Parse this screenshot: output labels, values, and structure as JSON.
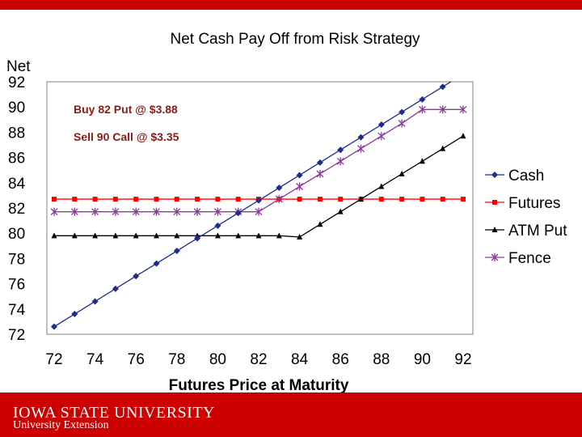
{
  "chart_data": {
    "type": "line",
    "title": "Net Cash Pay Off from Risk Strategy",
    "xlabel": "Futures Price at Maturity",
    "ylabel": "Net",
    "xlim": [
      72,
      92
    ],
    "ylim": [
      72,
      92
    ],
    "xticks": [
      72,
      74,
      76,
      78,
      80,
      82,
      84,
      86,
      88,
      90,
      92
    ],
    "yticks": [
      72,
      74,
      76,
      78,
      80,
      82,
      84,
      86,
      88,
      90,
      92
    ],
    "grid": false,
    "legend_position": "right",
    "annotations": [
      "Buy 82 Put @ $3.88",
      "Sell 90 Call @ $3.35"
    ],
    "x": [
      72,
      73,
      74,
      75,
      76,
      77,
      78,
      79,
      80,
      81,
      82,
      83,
      84,
      85,
      86,
      87,
      88,
      89,
      90,
      91,
      92
    ],
    "series": [
      {
        "name": "Cash",
        "color": "#1f2d8a",
        "marker": "diamond",
        "values": [
          72.6,
          73.6,
          74.6,
          75.6,
          76.6,
          77.6,
          78.6,
          79.6,
          80.6,
          81.6,
          82.6,
          83.6,
          84.6,
          85.6,
          86.6,
          87.6,
          88.6,
          89.6,
          90.6,
          91.6,
          92.6
        ]
      },
      {
        "name": "Futures",
        "color": "#ff0000",
        "marker": "square",
        "values": [
          82.7,
          82.7,
          82.7,
          82.7,
          82.7,
          82.7,
          82.7,
          82.7,
          82.7,
          82.7,
          82.7,
          82.7,
          82.7,
          82.7,
          82.7,
          82.7,
          82.7,
          82.7,
          82.7,
          82.7,
          82.7
        ]
      },
      {
        "name": "ATM Put",
        "color": "#000000",
        "marker": "triangle",
        "values": [
          79.8,
          79.8,
          79.8,
          79.8,
          79.8,
          79.8,
          79.8,
          79.8,
          79.8,
          79.8,
          79.8,
          79.8,
          79.7,
          80.7,
          81.7,
          82.7,
          83.7,
          84.7,
          85.7,
          86.7,
          87.7
        ]
      },
      {
        "name": "Fence",
        "color": "#8b3a9a",
        "marker": "star",
        "values": [
          81.7,
          81.7,
          81.7,
          81.7,
          81.7,
          81.7,
          81.7,
          81.7,
          81.7,
          81.7,
          81.7,
          82.7,
          83.7,
          84.7,
          85.7,
          86.7,
          87.7,
          88.7,
          89.8,
          89.8,
          89.8
        ]
      }
    ]
  },
  "footer": {
    "university": "IOWA STATE UNIVERSITY",
    "unit": "University Extension"
  }
}
